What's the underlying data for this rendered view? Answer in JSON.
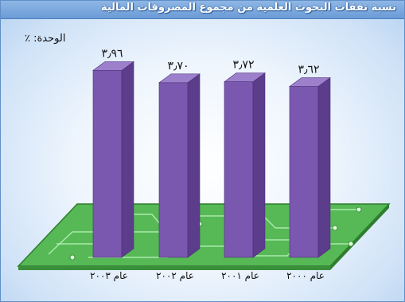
{
  "chart_data": {
    "type": "bar",
    "title": "نسبة نفقات البحوث العلمية من مجموع المصروفات المالية",
    "unit_label": "الوحدة: ٪",
    "categories": [
      "عام ٢٠٠٣",
      "عام ٢٠٠٢",
      "عام ٢٠٠١",
      "عام ٢٠٠٠"
    ],
    "values": [
      3.96,
      3.7,
      3.72,
      3.62
    ],
    "value_labels": [
      "٣٫٩٦",
      "٣٫٧٠",
      "٣٫٧٢",
      "٣٫٦٢"
    ],
    "ylim": [
      0,
      4.5
    ],
    "grid": false,
    "legend": "none",
    "bar_color": "#7b58b0",
    "bar_side_color": "#5c3d8c",
    "bar_top_color": "#9d80cc",
    "base_color": "#56b956",
    "title_color": "#ffffff"
  }
}
